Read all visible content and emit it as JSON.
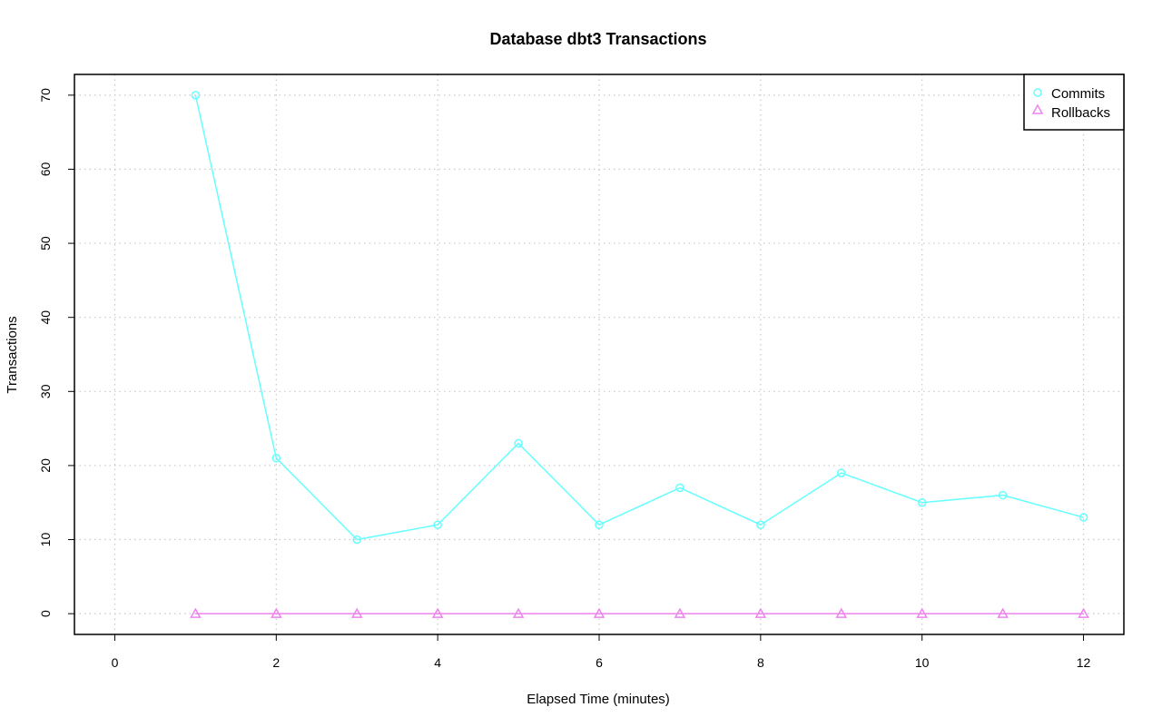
{
  "chart_data": {
    "type": "line",
    "title": "Database dbt3 Transactions",
    "xlabel": "Elapsed Time (minutes)",
    "ylabel": "Transactions",
    "xlim": [
      -0.5,
      12.5
    ],
    "ylim": [
      -2.8,
      72.8
    ],
    "xticks": [
      0,
      2,
      4,
      6,
      8,
      10,
      12
    ],
    "yticks": [
      0,
      10,
      20,
      30,
      40,
      50,
      60,
      70
    ],
    "grid": true,
    "legend_position": "top-right",
    "x": [
      1,
      2,
      3,
      4,
      5,
      6,
      7,
      8,
      9,
      10,
      11,
      12
    ],
    "series": [
      {
        "name": "Commits",
        "marker": "circle",
        "color": "#66ffff",
        "values": [
          70,
          21,
          10,
          12,
          23,
          12,
          17,
          12,
          19,
          15,
          16,
          13
        ]
      },
      {
        "name": "Rollbacks",
        "marker": "triangle",
        "color": "#ee82ee",
        "values": [
          0,
          0,
          0,
          0,
          0,
          0,
          0,
          0,
          0,
          0,
          0,
          0
        ]
      }
    ]
  }
}
